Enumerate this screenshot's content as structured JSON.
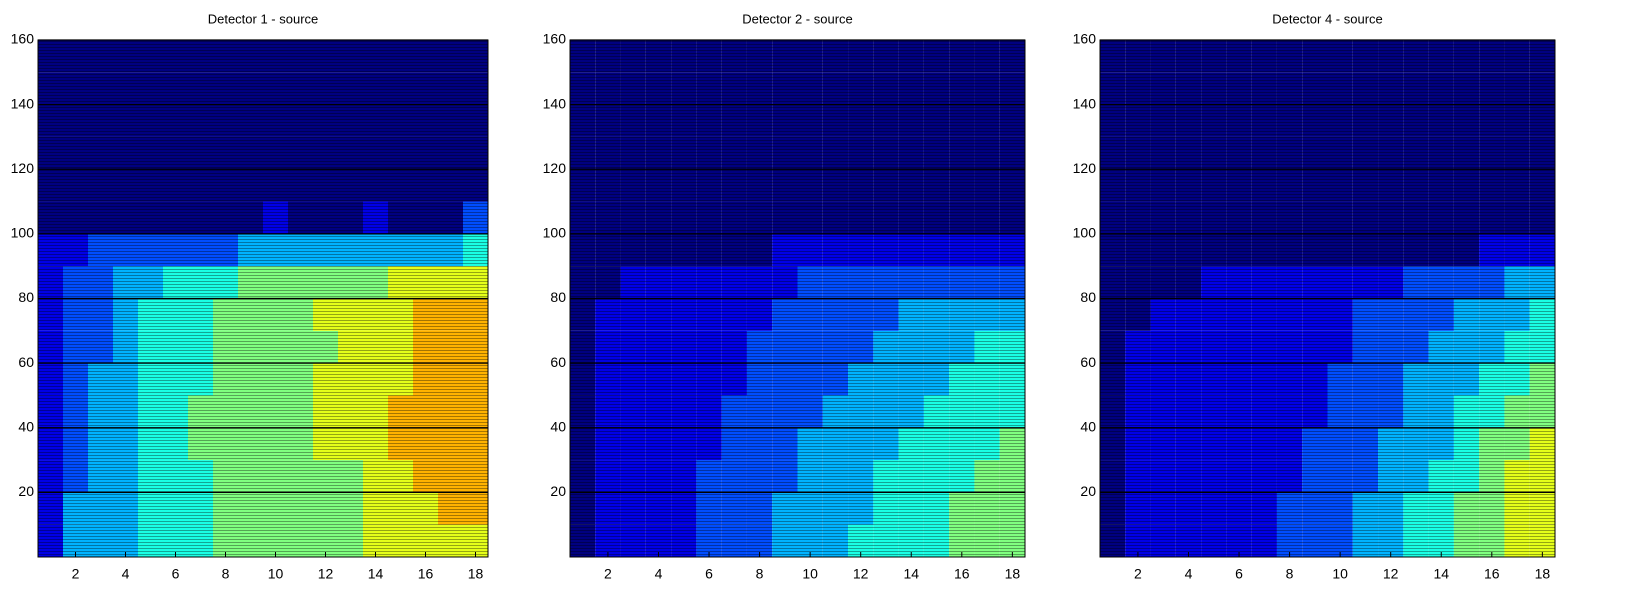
{
  "chart_data": [
    {
      "type": "heatmap",
      "title": "Detector 1 - source",
      "colormap": "jet",
      "clim": [
        0,
        10
      ],
      "x": [
        1,
        2,
        3,
        4,
        5,
        6,
        7,
        8,
        9,
        10,
        11,
        12,
        13,
        14,
        15,
        16,
        17,
        18
      ],
      "y_bins": [
        0,
        10,
        20,
        30,
        40,
        50,
        60,
        70,
        80,
        90,
        100,
        110,
        120,
        130,
        140,
        150,
        160
      ],
      "xlim": [
        0.5,
        18.5
      ],
      "ylim": [
        0,
        160
      ],
      "xticks": [
        2,
        4,
        6,
        8,
        10,
        12,
        14,
        16,
        18
      ],
      "yticks": [
        20,
        40,
        60,
        80,
        100,
        120,
        140,
        160
      ],
      "z": [
        [
          1,
          3,
          3,
          3,
          4,
          4,
          4,
          5,
          5,
          5,
          5,
          5,
          5,
          6,
          6,
          6,
          6,
          6
        ],
        [
          1,
          3,
          3,
          3,
          4,
          4,
          4,
          5,
          5,
          5,
          5,
          5,
          5,
          6,
          6,
          6,
          7,
          7
        ],
        [
          1,
          2,
          3,
          3,
          4,
          4,
          4,
          5,
          5,
          5,
          5,
          5,
          5,
          6,
          6,
          7,
          7,
          7
        ],
        [
          1,
          2,
          3,
          3,
          4,
          4,
          5,
          5,
          5,
          5,
          5,
          6,
          6,
          6,
          7,
          7,
          7,
          7
        ],
        [
          1,
          2,
          3,
          3,
          4,
          4,
          5,
          5,
          5,
          5,
          5,
          6,
          6,
          6,
          7,
          7,
          7,
          7
        ],
        [
          1,
          2,
          3,
          3,
          4,
          4,
          4,
          5,
          5,
          5,
          5,
          6,
          6,
          6,
          6,
          7,
          7,
          7
        ],
        [
          1,
          2,
          2,
          3,
          4,
          4,
          4,
          5,
          5,
          5,
          5,
          5,
          6,
          6,
          6,
          7,
          7,
          7
        ],
        [
          1,
          2,
          2,
          3,
          4,
          4,
          4,
          5,
          5,
          5,
          5,
          6,
          6,
          6,
          6,
          7,
          7,
          7
        ],
        [
          1,
          2,
          2,
          3,
          3,
          4,
          4,
          4,
          5,
          5,
          5,
          5,
          5,
          5,
          6,
          6,
          6,
          6
        ],
        [
          1,
          1,
          2,
          2,
          2,
          2,
          2,
          2,
          3,
          3,
          3,
          3,
          3,
          3,
          3,
          3,
          3,
          4
        ],
        [
          0,
          0,
          0,
          0,
          0,
          0,
          0,
          0,
          0,
          1,
          0,
          0,
          0,
          1,
          0,
          0,
          0,
          2
        ],
        [
          0,
          0,
          0,
          0,
          0,
          0,
          0,
          0,
          0,
          0,
          0,
          0,
          0,
          0,
          0,
          0,
          0,
          0
        ],
        [
          0,
          0,
          0,
          0,
          0,
          0,
          0,
          0,
          0,
          0,
          0,
          0,
          0,
          0,
          0,
          0,
          0,
          0
        ],
        [
          0,
          0,
          0,
          0,
          0,
          0,
          0,
          0,
          0,
          0,
          0,
          0,
          0,
          0,
          0,
          0,
          0,
          0
        ],
        [
          0,
          0,
          0,
          0,
          0,
          0,
          0,
          0,
          0,
          0,
          0,
          0,
          0,
          0,
          0,
          0,
          0,
          0
        ],
        [
          0,
          0,
          0,
          0,
          0,
          0,
          0,
          0,
          0,
          0,
          0,
          0,
          0,
          0,
          0,
          0,
          0,
          0
        ]
      ]
    },
    {
      "type": "heatmap",
      "title": "Detector 2 - source",
      "colormap": "jet",
      "clim": [
        0,
        10
      ],
      "x": [
        1,
        2,
        3,
        4,
        5,
        6,
        7,
        8,
        9,
        10,
        11,
        12,
        13,
        14,
        15,
        16,
        17,
        18
      ],
      "y_bins": [
        0,
        10,
        20,
        30,
        40,
        50,
        60,
        70,
        80,
        90,
        100,
        110,
        120,
        130,
        140,
        150,
        160
      ],
      "xlim": [
        0.5,
        18.5
      ],
      "ylim": [
        0,
        160
      ],
      "xticks": [
        2,
        4,
        6,
        8,
        10,
        12,
        14,
        16,
        18
      ],
      "yticks": [
        20,
        40,
        60,
        80,
        100,
        120,
        140,
        160
      ],
      "z": [
        [
          0,
          1,
          1,
          1,
          1,
          2,
          2,
          2,
          3,
          3,
          3,
          4,
          4,
          4,
          4,
          5,
          5,
          5
        ],
        [
          0,
          1,
          1,
          1,
          1,
          2,
          2,
          2,
          3,
          3,
          3,
          3,
          4,
          4,
          4,
          5,
          5,
          5
        ],
        [
          0,
          1,
          1,
          1,
          1,
          2,
          2,
          2,
          2,
          3,
          3,
          3,
          4,
          4,
          4,
          4,
          5,
          5
        ],
        [
          0,
          1,
          1,
          1,
          1,
          1,
          2,
          2,
          2,
          3,
          3,
          3,
          3,
          4,
          4,
          4,
          4,
          5
        ],
        [
          0,
          1,
          1,
          1,
          1,
          1,
          2,
          2,
          2,
          2,
          3,
          3,
          3,
          3,
          4,
          4,
          4,
          4
        ],
        [
          0,
          1,
          1,
          1,
          1,
          1,
          1,
          2,
          2,
          2,
          2,
          3,
          3,
          3,
          3,
          4,
          4,
          4
        ],
        [
          0,
          1,
          1,
          1,
          1,
          1,
          1,
          2,
          2,
          2,
          2,
          2,
          3,
          3,
          3,
          3,
          4,
          4
        ],
        [
          0,
          1,
          1,
          1,
          1,
          1,
          1,
          1,
          2,
          2,
          2,
          2,
          2,
          3,
          3,
          3,
          3,
          3
        ],
        [
          0,
          0,
          1,
          1,
          1,
          1,
          1,
          1,
          1,
          2,
          2,
          2,
          2,
          2,
          2,
          2,
          2,
          2
        ],
        [
          0,
          0,
          0,
          0,
          0,
          0,
          0,
          0,
          1,
          1,
          1,
          1,
          1,
          1,
          1,
          1,
          1,
          1
        ],
        [
          0,
          0,
          0,
          0,
          0,
          0,
          0,
          0,
          0,
          0,
          0,
          0,
          0,
          0,
          0,
          0,
          0,
          0
        ],
        [
          0,
          0,
          0,
          0,
          0,
          0,
          0,
          0,
          0,
          0,
          0,
          0,
          0,
          0,
          0,
          0,
          0,
          0
        ],
        [
          0,
          0,
          0,
          0,
          0,
          0,
          0,
          0,
          0,
          0,
          0,
          0,
          0,
          0,
          0,
          0,
          0,
          0
        ],
        [
          0,
          0,
          0,
          0,
          0,
          0,
          0,
          0,
          0,
          0,
          0,
          0,
          0,
          0,
          0,
          0,
          0,
          0
        ],
        [
          0,
          0,
          0,
          0,
          0,
          0,
          0,
          0,
          0,
          0,
          0,
          0,
          0,
          0,
          0,
          0,
          0,
          0
        ],
        [
          0,
          0,
          0,
          0,
          0,
          0,
          0,
          0,
          0,
          0,
          0,
          0,
          0,
          0,
          0,
          0,
          0,
          0
        ]
      ]
    },
    {
      "type": "heatmap",
      "title": "Detector 4 - source",
      "colormap": "jet",
      "clim": [
        0,
        10
      ],
      "x": [
        1,
        2,
        3,
        4,
        5,
        6,
        7,
        8,
        9,
        10,
        11,
        12,
        13,
        14,
        15,
        16,
        17,
        18
      ],
      "y_bins": [
        0,
        10,
        20,
        30,
        40,
        50,
        60,
        70,
        80,
        90,
        100,
        110,
        120,
        130,
        140,
        150,
        160
      ],
      "xlim": [
        0.5,
        18.5
      ],
      "ylim": [
        0,
        160
      ],
      "xticks": [
        2,
        4,
        6,
        8,
        10,
        12,
        14,
        16,
        18
      ],
      "yticks": [
        20,
        40,
        60,
        80,
        100,
        120,
        140,
        160
      ],
      "z": [
        [
          0,
          1,
          1,
          1,
          1,
          1,
          1,
          2,
          2,
          2,
          3,
          3,
          4,
          4,
          5,
          5,
          6,
          6
        ],
        [
          0,
          1,
          1,
          1,
          1,
          1,
          1,
          2,
          2,
          2,
          3,
          3,
          4,
          4,
          5,
          5,
          6,
          6
        ],
        [
          0,
          1,
          1,
          1,
          1,
          1,
          1,
          1,
          2,
          2,
          2,
          3,
          3,
          4,
          4,
          5,
          6,
          6
        ],
        [
          0,
          1,
          1,
          1,
          1,
          1,
          1,
          1,
          2,
          2,
          2,
          3,
          3,
          3,
          4,
          5,
          5,
          6
        ],
        [
          0,
          1,
          1,
          1,
          1,
          1,
          1,
          1,
          1,
          2,
          2,
          2,
          3,
          3,
          4,
          4,
          5,
          5
        ],
        [
          0,
          1,
          1,
          1,
          1,
          1,
          1,
          1,
          1,
          2,
          2,
          2,
          3,
          3,
          3,
          4,
          4,
          5
        ],
        [
          0,
          1,
          1,
          1,
          1,
          1,
          1,
          1,
          1,
          1,
          2,
          2,
          2,
          3,
          3,
          3,
          4,
          4
        ],
        [
          0,
          0,
          1,
          1,
          1,
          1,
          1,
          1,
          1,
          1,
          2,
          2,
          2,
          2,
          3,
          3,
          3,
          4
        ],
        [
          0,
          0,
          0,
          0,
          1,
          1,
          1,
          1,
          1,
          1,
          1,
          1,
          2,
          2,
          2,
          2,
          3,
          3
        ],
        [
          0,
          0,
          0,
          0,
          0,
          0,
          0,
          0,
          0,
          0,
          0,
          0,
          0,
          0,
          0,
          1,
          1,
          1
        ],
        [
          0,
          0,
          0,
          0,
          0,
          0,
          0,
          0,
          0,
          0,
          0,
          0,
          0,
          0,
          0,
          0,
          0,
          0
        ],
        [
          0,
          0,
          0,
          0,
          0,
          0,
          0,
          0,
          0,
          0,
          0,
          0,
          0,
          0,
          0,
          0,
          0,
          0
        ],
        [
          0,
          0,
          0,
          0,
          0,
          0,
          0,
          0,
          0,
          0,
          0,
          0,
          0,
          0,
          0,
          0,
          0,
          0
        ],
        [
          0,
          0,
          0,
          0,
          0,
          0,
          0,
          0,
          0,
          0,
          0,
          0,
          0,
          0,
          0,
          0,
          0,
          0
        ],
        [
          0,
          0,
          0,
          0,
          0,
          0,
          0,
          0,
          0,
          0,
          0,
          0,
          0,
          0,
          0,
          0,
          0,
          0
        ],
        [
          0,
          0,
          0,
          0,
          0,
          0,
          0,
          0,
          0,
          0,
          0,
          0,
          0,
          0,
          0,
          0,
          0,
          0
        ]
      ]
    }
  ]
}
